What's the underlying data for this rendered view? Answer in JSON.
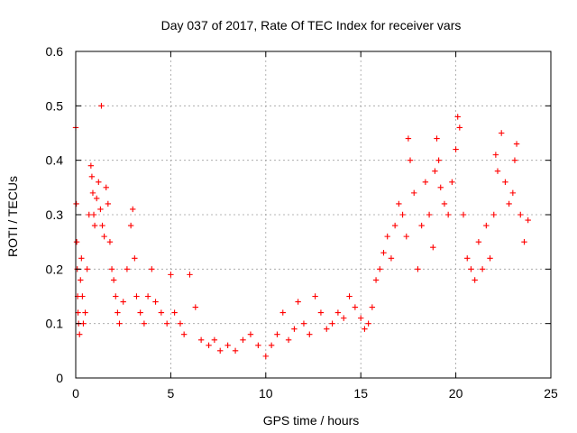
{
  "chart_data": {
    "type": "scatter",
    "title": "Day 037 of 2017, Rate Of TEC Index for receiver vars",
    "xlabel": "GPS time / hours",
    "ylabel": "ROTI / TECUs",
    "xlim": [
      0,
      25
    ],
    "ylim": [
      0,
      0.6
    ],
    "xticks": [
      0,
      5,
      10,
      15,
      20,
      25
    ],
    "xtick_labels": [
      "0",
      "5",
      "10",
      "15",
      "20",
      "25"
    ],
    "yticks": [
      0,
      0.1,
      0.2,
      0.3,
      0.4,
      0.5,
      0.6
    ],
    "ytick_labels": [
      "0",
      "0.1",
      "0.2",
      "0.3",
      "0.4",
      "0.5",
      "0.6"
    ],
    "grid": true,
    "legend": "none",
    "marker": "plus",
    "series": [
      {
        "name": "ROTI",
        "color": "#ff0000",
        "x": [
          0.0,
          0.03,
          0.05,
          0.08,
          0.1,
          0.12,
          0.15,
          0.2,
          0.25,
          0.3,
          0.35,
          0.4,
          0.5,
          0.6,
          0.7,
          0.8,
          0.85,
          0.9,
          0.95,
          1.0,
          1.1,
          1.2,
          1.3,
          1.35,
          1.4,
          1.5,
          1.6,
          1.7,
          1.8,
          1.9,
          2.0,
          2.1,
          2.2,
          2.3,
          2.5,
          2.7,
          2.9,
          3.0,
          3.1,
          3.2,
          3.4,
          3.6,
          3.8,
          4.0,
          4.2,
          4.5,
          4.8,
          5.0,
          5.2,
          5.5,
          5.7,
          6.0,
          6.3,
          6.6,
          7.0,
          7.3,
          7.6,
          8.0,
          8.4,
          8.8,
          9.2,
          9.6,
          10.0,
          10.3,
          10.6,
          10.9,
          11.2,
          11.5,
          11.7,
          12.0,
          12.3,
          12.6,
          12.9,
          13.2,
          13.5,
          13.8,
          14.1,
          14.4,
          14.7,
          15.0,
          15.2,
          15.4,
          15.6,
          15.8,
          16.0,
          16.2,
          16.4,
          16.6,
          16.8,
          17.0,
          17.2,
          17.4,
          17.5,
          17.6,
          17.8,
          18.0,
          18.2,
          18.4,
          18.6,
          18.8,
          18.9,
          19.0,
          19.1,
          19.2,
          19.4,
          19.6,
          19.8,
          20.0,
          20.1,
          20.2,
          20.4,
          20.6,
          20.8,
          21.0,
          21.2,
          21.4,
          21.6,
          21.8,
          22.0,
          22.1,
          22.2,
          22.4,
          22.6,
          22.8,
          23.0,
          23.1,
          23.2,
          23.4,
          23.6,
          23.8
        ],
        "y": [
          0.46,
          0.32,
          0.25,
          0.2,
          0.15,
          0.12,
          0.1,
          0.08,
          0.18,
          0.22,
          0.15,
          0.1,
          0.12,
          0.2,
          0.3,
          0.39,
          0.37,
          0.34,
          0.3,
          0.28,
          0.33,
          0.36,
          0.31,
          0.5,
          0.28,
          0.26,
          0.35,
          0.32,
          0.25,
          0.2,
          0.18,
          0.15,
          0.12,
          0.1,
          0.14,
          0.2,
          0.28,
          0.31,
          0.22,
          0.15,
          0.12,
          0.1,
          0.15,
          0.2,
          0.14,
          0.12,
          0.1,
          0.19,
          0.12,
          0.1,
          0.08,
          0.19,
          0.13,
          0.07,
          0.06,
          0.07,
          0.05,
          0.06,
          0.05,
          0.07,
          0.08,
          0.06,
          0.04,
          0.06,
          0.08,
          0.12,
          0.07,
          0.09,
          0.14,
          0.1,
          0.08,
          0.15,
          0.12,
          0.09,
          0.1,
          0.12,
          0.11,
          0.15,
          0.13,
          0.11,
          0.09,
          0.1,
          0.13,
          0.18,
          0.2,
          0.23,
          0.26,
          0.22,
          0.28,
          0.32,
          0.3,
          0.26,
          0.44,
          0.4,
          0.34,
          0.2,
          0.28,
          0.36,
          0.3,
          0.24,
          0.38,
          0.44,
          0.4,
          0.35,
          0.32,
          0.3,
          0.36,
          0.42,
          0.48,
          0.46,
          0.3,
          0.22,
          0.2,
          0.18,
          0.25,
          0.2,
          0.28,
          0.22,
          0.3,
          0.41,
          0.38,
          0.45,
          0.36,
          0.32,
          0.34,
          0.4,
          0.43,
          0.3,
          0.25,
          0.29
        ]
      }
    ]
  }
}
